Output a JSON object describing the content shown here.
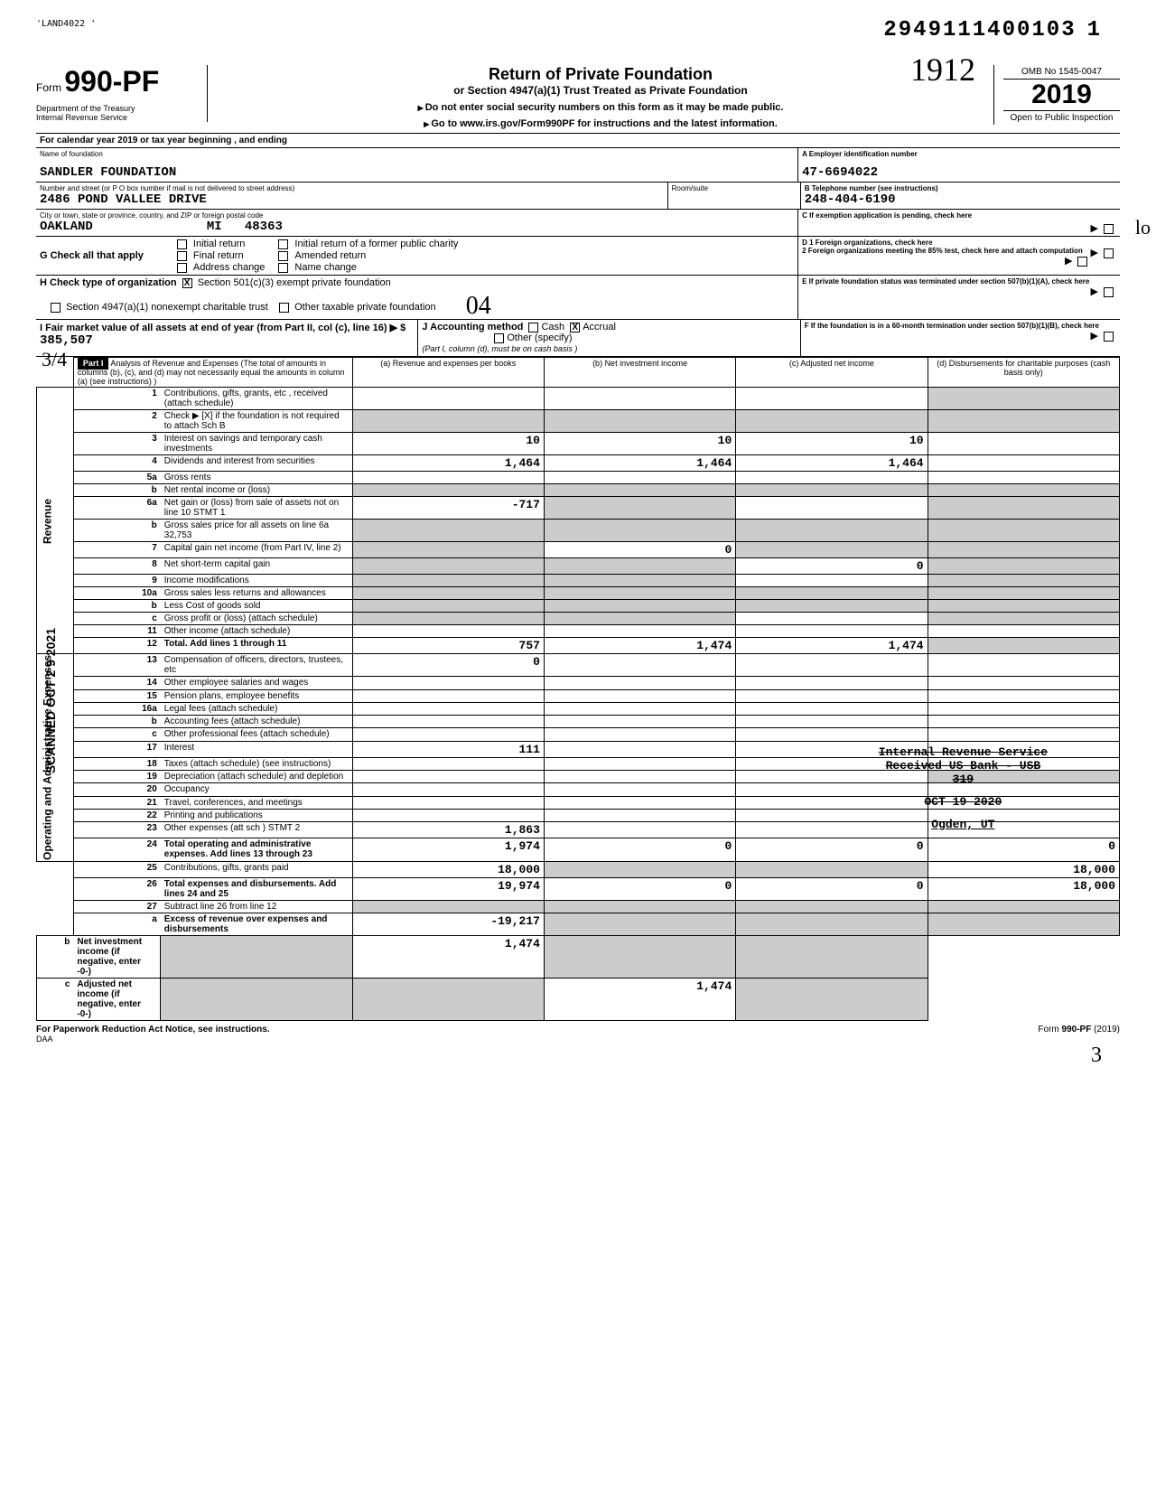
{
  "doc": {
    "top_handle_left": "'LAND4022 '",
    "top_right_id": "2949111400103",
    "top_right_seq": "1",
    "form_prefix": "Form",
    "form_number": "990-PF",
    "dept": "Department of the Treasury\nInternal Revenue Service",
    "title": "Return of Private Foundation",
    "subtitle": "or Section 4947(a)(1) Trust Treated as Private Foundation",
    "warn1": "Do not enter social security numbers on this form as it may be made public.",
    "warn2": "Go to www.irs.gov/Form990PF for instructions and the latest information.",
    "omb": "OMB No  1545-0047",
    "year": "2019",
    "open_pub": "Open to Public Inspection",
    "handwritten_912": "1912",
    "calyear_line": "For calendar year 2019 or tax year beginning                            , and ending",
    "id_labels": {
      "name_lbl": "Name of foundation",
      "ein_lbl": "A   Employer identification number",
      "addr_lbl": "Number and street (or P O  box number if mail is not delivered to street address)",
      "room_lbl": "Room/suite",
      "tel_lbl": "B   Telephone number (see instructions)",
      "city_lbl": "City or town, state or province, country, and ZIP or foreign postal code"
    },
    "foundation_name": "SANDLER FOUNDATION",
    "ein": "47-6694022",
    "address": "2486 POND VALLEE DRIVE",
    "phone": "248-404-6190",
    "city": "OAKLAND",
    "state": "MI",
    "zip": "48363",
    "C_label": "C   If exemption application is pending, check here",
    "G_label": "G  Check all that apply",
    "G_opts": [
      "Initial return",
      "Final return",
      "Address change",
      "Initial return of a former public charity",
      "Amended return",
      "Name change"
    ],
    "D_label": "D  1  Foreign organizations, check here",
    "D2_label": "    2  Foreign organizations meeting the 85% test, check here and attach computation",
    "H_label": "H  Check type of organization",
    "H_opt1": "Section 501(c)(3) exempt private foundation",
    "H_opt2": "Section 4947(a)(1) nonexempt charitable trust",
    "H_opt3": "Other taxable private foundation",
    "E_label": "E   If private foundation status was terminated under section 507(b)(1)(A), check here",
    "I_label": "I   Fair market value of all assets at end of year (from Part II, col  (c), line 16) ▶  $",
    "I_value": "385,507",
    "J_label": "J  Accounting method",
    "J_cash": "Cash",
    "J_accrual": "Accrual",
    "J_other": "Other (specify)",
    "J_note": "(Part I, column (d), must be on cash basis )",
    "F_label": "F   If the foundation is in a 60-month termination under section 507(b)(1)(B), check here",
    "part1_hdr": "Part I",
    "part1_title": "Analysis of Revenue and Expenses (The total of amounts in columns (b), (c), and (d) may not necessarily equal the amounts in column (a) (see instructions) )",
    "cols": {
      "a": "(a) Revenue and expenses per books",
      "b": "(b) Net investment income",
      "c": "(c) Adjusted net income",
      "d": "(d) Disbursements for charitable purposes (cash basis only)"
    },
    "side_revenue": "Revenue",
    "side_opex": "Operating and Administrative Expenses",
    "side_scanned": "SCANNED OCT 2 9 2021",
    "side_34": "3/4",
    "lines": [
      {
        "n": "1",
        "d": "Contributions, gifts, grants, etc , received (attach schedule)",
        "a": "",
        "b": "",
        "c": "",
        "dd": "",
        "shadeD": true
      },
      {
        "n": "2",
        "d": "Check ▶  [X]  if the foundation is not required to attach Sch  B",
        "a": "",
        "b": "",
        "c": "",
        "dd": "",
        "shadeA": true,
        "shadeB": true,
        "shadeC": true,
        "shadeD": true
      },
      {
        "n": "3",
        "d": "Interest on savings and temporary cash investments",
        "a": "10",
        "b": "10",
        "c": "10",
        "dd": ""
      },
      {
        "n": "4",
        "d": "Dividends and interest from securities",
        "a": "1,464",
        "b": "1,464",
        "c": "1,464",
        "dd": ""
      },
      {
        "n": "5a",
        "d": "Gross rents",
        "a": "",
        "b": "",
        "c": "",
        "dd": ""
      },
      {
        "n": "b",
        "d": "Net rental income or (loss)",
        "a": "",
        "b": "",
        "c": "",
        "dd": "",
        "shadeA": true,
        "shadeB": true,
        "shadeC": true,
        "shadeD": true
      },
      {
        "n": "6a",
        "d": "Net gain or (loss) from sale of assets not on line 10     STMT 1",
        "a": "-717",
        "b": "",
        "c": "",
        "dd": "",
        "shadeB": true,
        "shadeD": true
      },
      {
        "n": "b",
        "d": "Gross sales price for all assets on line 6a                      32,753",
        "a": "",
        "b": "",
        "c": "",
        "dd": "",
        "shadeA": true,
        "shadeB": true,
        "shadeC": true,
        "shadeD": true
      },
      {
        "n": "7",
        "d": "Capital gain net income (from Part IV, line 2)",
        "a": "",
        "b": "0",
        "c": "",
        "dd": "",
        "shadeA": true,
        "shadeC": true,
        "shadeD": true
      },
      {
        "n": "8",
        "d": "Net short-term capital gain",
        "a": "",
        "b": "",
        "c": "0",
        "dd": "",
        "shadeA": true,
        "shadeB": true,
        "shadeD": true
      },
      {
        "n": "9",
        "d": "Income modifications",
        "a": "",
        "b": "",
        "c": "",
        "dd": "",
        "shadeA": true,
        "shadeB": true,
        "shadeD": true
      },
      {
        "n": "10a",
        "d": "Gross sales less returns and allowances",
        "a": "",
        "b": "",
        "c": "",
        "dd": "",
        "shadeA": true,
        "shadeB": true,
        "shadeC": true,
        "shadeD": true
      },
      {
        "n": "b",
        "d": "Less  Cost of goods sold",
        "a": "",
        "b": "",
        "c": "",
        "dd": "",
        "shadeA": true,
        "shadeB": true,
        "shadeC": true,
        "shadeD": true
      },
      {
        "n": "c",
        "d": "Gross profit or (loss) (attach schedule)",
        "a": "",
        "b": "",
        "c": "",
        "dd": "",
        "shadeA": true,
        "shadeB": true,
        "shadeD": true
      },
      {
        "n": "11",
        "d": "Other income (attach schedule)",
        "a": "",
        "b": "",
        "c": "",
        "dd": ""
      },
      {
        "n": "12",
        "d": "Total. Add lines 1 through 11",
        "a": "757",
        "b": "1,474",
        "c": "1,474",
        "dd": "",
        "bold": true,
        "shadeD": true
      },
      {
        "n": "13",
        "d": "Compensation of officers, directors, trustees, etc",
        "a": "0",
        "b": "",
        "c": "",
        "dd": ""
      },
      {
        "n": "14",
        "d": "Other employee salaries and wages",
        "a": "",
        "b": "",
        "c": "",
        "dd": ""
      },
      {
        "n": "15",
        "d": "Pension plans, employee benefits",
        "a": "",
        "b": "",
        "c": "",
        "dd": ""
      },
      {
        "n": "16a",
        "d": "Legal fees (attach schedule)",
        "a": "",
        "b": "",
        "c": "",
        "dd": ""
      },
      {
        "n": "b",
        "d": "Accounting fees (attach schedule)",
        "a": "",
        "b": "",
        "c": "",
        "dd": ""
      },
      {
        "n": "c",
        "d": "Other professional fees (attach schedule)",
        "a": "",
        "b": "",
        "c": "",
        "dd": ""
      },
      {
        "n": "17",
        "d": "Interest",
        "a": "111",
        "b": "",
        "c": "",
        "dd": ""
      },
      {
        "n": "18",
        "d": "Taxes (attach schedule) (see instructions)",
        "a": "",
        "b": "",
        "c": "",
        "dd": ""
      },
      {
        "n": "19",
        "d": "Depreciation (attach schedule) and depletion",
        "a": "",
        "b": "",
        "c": "",
        "dd": "",
        "shadeD": true
      },
      {
        "n": "20",
        "d": "Occupancy",
        "a": "",
        "b": "",
        "c": "",
        "dd": ""
      },
      {
        "n": "21",
        "d": "Travel, conferences, and meetings",
        "a": "",
        "b": "",
        "c": "",
        "dd": ""
      },
      {
        "n": "22",
        "d": "Printing and publications",
        "a": "",
        "b": "",
        "c": "",
        "dd": ""
      },
      {
        "n": "23",
        "d": "Other expenses (att  sch )                       STMT 2",
        "a": "1,863",
        "b": "",
        "c": "",
        "dd": ""
      },
      {
        "n": "24",
        "d": "Total operating and administrative expenses. Add lines 13 through 23",
        "a": "1,974",
        "b": "0",
        "c": "0",
        "dd": "0",
        "bold": true
      },
      {
        "n": "25",
        "d": "Contributions, gifts, grants paid",
        "a": "18,000",
        "b": "",
        "c": "",
        "dd": "18,000",
        "shadeB": true,
        "shadeC": true
      },
      {
        "n": "26",
        "d": "Total expenses and disbursements. Add lines 24 and 25",
        "a": "19,974",
        "b": "0",
        "c": "0",
        "dd": "18,000",
        "bold": true
      },
      {
        "n": "27",
        "d": "Subtract line 26 from line 12",
        "a": "",
        "b": "",
        "c": "",
        "dd": "",
        "shadeA": true,
        "shadeB": true,
        "shadeC": true,
        "shadeD": true
      },
      {
        "n": "a",
        "d": "Excess of revenue over expenses and disbursements",
        "a": "-19,217",
        "b": "",
        "c": "",
        "dd": "",
        "shadeB": true,
        "shadeC": true,
        "shadeD": true,
        "bold": true
      },
      {
        "n": "b",
        "d": "Net investment income (if negative, enter -0-)",
        "a": "",
        "b": "1,474",
        "c": "",
        "dd": "",
        "shadeA": true,
        "shadeC": true,
        "shadeD": true,
        "bold": true
      },
      {
        "n": "c",
        "d": "Adjusted net income (if negative, enter -0-)",
        "a": "",
        "b": "",
        "c": "1,474",
        "dd": "",
        "shadeA": true,
        "shadeB": true,
        "shadeD": true,
        "bold": true
      }
    ],
    "irs_stamp": {
      "l1": "Internal Revenue Service",
      "l2": "Received US Bank - USB",
      "l3": "319",
      "l4": "OCT 19 2020",
      "l5": "Ogden, UT"
    },
    "footer_left": "For Paperwork Reduction Act Notice, see instructions.",
    "footer_mid": "DAA",
    "footer_right": "Form 990-PF (2019)",
    "handwritten_3": "3",
    "handwritten_lo": "lo"
  }
}
